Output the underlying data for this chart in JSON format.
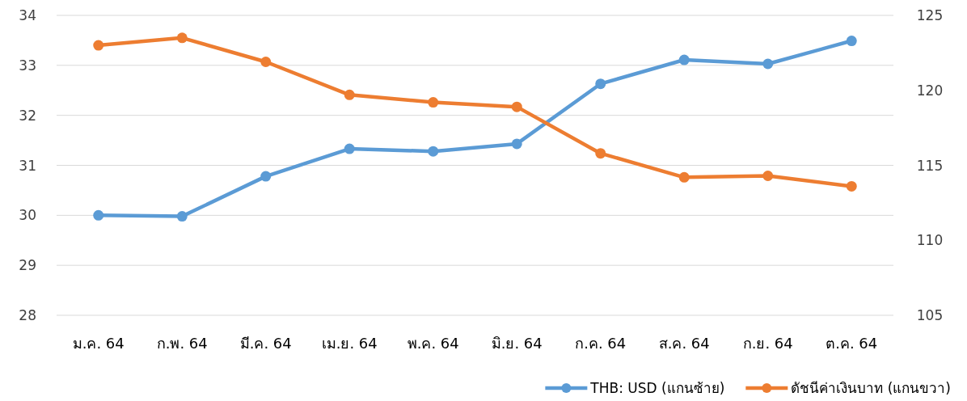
{
  "chart_data": {
    "type": "line",
    "categories": [
      "ม.ค. 64",
      "ก.พ. 64",
      "มี.ค. 64",
      "เม.ย. 64",
      "พ.ค. 64",
      "มิ.ย. 64",
      "ก.ค. 64",
      "ส.ค. 64",
      "ก.ย. 64",
      "ต.ค. 64"
    ],
    "series": [
      {
        "name": "THB: USD (แกนซ้าย)",
        "color": "#5b9bd5",
        "values": [
          30.0,
          29.98,
          30.78,
          31.33,
          31.28,
          31.43,
          32.63,
          33.11,
          33.03,
          33.49
        ]
      },
      {
        "name": "ดัชนีค่าเงินบาท (แกนขวา)",
        "color": "#ed7d31",
        "axis": "y2",
        "values": [
          123.0,
          123.5,
          121.9,
          119.7,
          119.2,
          118.9,
          115.8,
          114.2,
          114.3,
          113.6
        ]
      }
    ],
    "ylim": [
      28,
      34
    ],
    "yticks": [
      28,
      29,
      30,
      31,
      32,
      33,
      34
    ],
    "y2lim": [
      105,
      125
    ],
    "y2ticks": [
      105,
      110,
      115,
      120,
      125
    ],
    "grid": "y",
    "legend": "bottom right",
    "marker": "circle",
    "line_style": "solid"
  }
}
